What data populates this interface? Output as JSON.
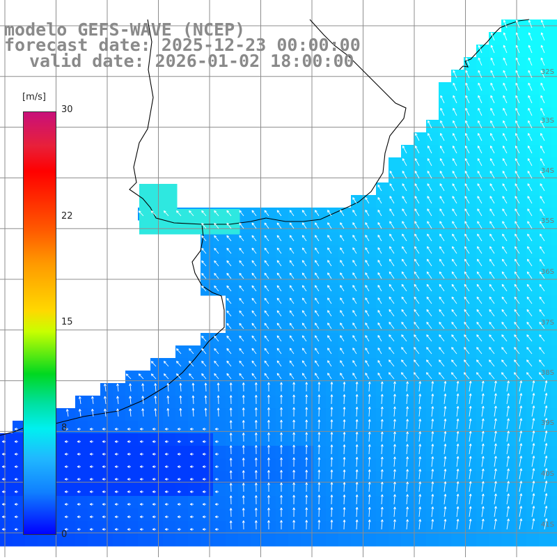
{
  "title": {
    "line1": "modelo GEFS-WAVE (NCEP)",
    "line2": "forecast date: 2025-12-23 00:00:00",
    "line3": "valid date: 2026-01-02 18:00:00"
  },
  "colorbar": {
    "unit": "[m/s]",
    "min": 0,
    "max": 30,
    "ticks": [
      "30",
      "22",
      "15",
      "8",
      "0"
    ],
    "tick_values": [
      30,
      22,
      15,
      8,
      0
    ]
  },
  "lat_labels": [
    "32S",
    "33S",
    "34S",
    "35S",
    "36S",
    "37S",
    "38S",
    "39S",
    "40S",
    "41S"
  ],
  "lat_values": [
    32,
    33,
    34,
    35,
    36,
    37,
    38,
    39,
    40,
    41
  ],
  "colors": {
    "land": "#ffffff",
    "grid": "#8c8c8c",
    "coast": "#000000",
    "arrow": "#ffffff"
  }
}
